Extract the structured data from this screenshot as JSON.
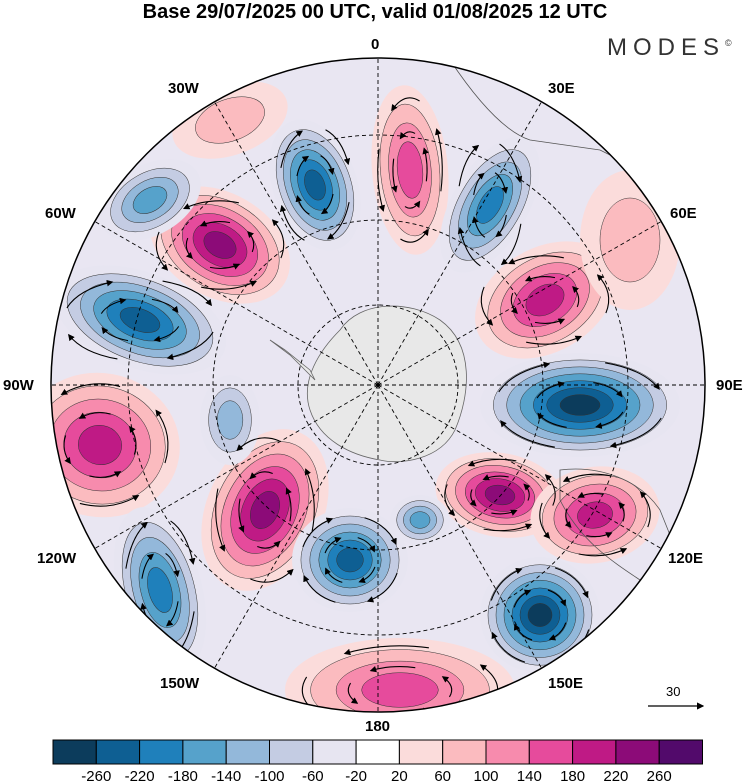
{
  "title": "Base 29/07/2025 00 UTC, valid 01/08/2025 12 UTC",
  "logo": "MODES",
  "logo_mark": "©",
  "map": {
    "projection": "south polar stereographic",
    "lon_labels": {
      "top": "0",
      "top_right": "30E",
      "right_upper": "60E",
      "right": "90E",
      "right_lower": "120E",
      "bottom_right": "150E",
      "bottom": "180",
      "bottom_left": "150W",
      "left_lower": "120W",
      "left": "90W",
      "left_upper": "60W",
      "top_left": "30W"
    }
  },
  "vector_reference": "30",
  "colorbar": {
    "colors": [
      "#0c3c5c",
      "#0e5f93",
      "#1f80bb",
      "#56a2cb",
      "#93b8da",
      "#c4cce3",
      "#e7e5f1",
      "#ffffff",
      "#fbdcdb",
      "#fbbbbf",
      "#f78bad",
      "#e64b9c",
      "#bf1a85",
      "#8c0b78",
      "#520a6b"
    ],
    "tick_labels": [
      "-260",
      "-220",
      "-180",
      "-140",
      "-100",
      "-60",
      "-20",
      "20",
      "60",
      "100",
      "140",
      "180",
      "220",
      "260"
    ]
  }
}
